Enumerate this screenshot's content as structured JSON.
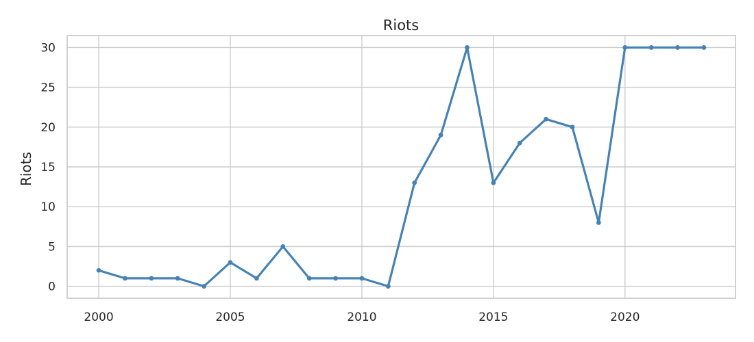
{
  "chart_data": {
    "type": "line",
    "title": "Riots",
    "xlabel": "",
    "ylabel": "Riots",
    "x": [
      2000,
      2001,
      2002,
      2003,
      2004,
      2005,
      2006,
      2007,
      2008,
      2009,
      2010,
      2011,
      2012,
      2013,
      2014,
      2015,
      2016,
      2017,
      2018,
      2019,
      2020,
      2021,
      2022,
      2023
    ],
    "series": [
      {
        "values": [
          2,
          1,
          1,
          1,
          0,
          3,
          1,
          5,
          1,
          1,
          1,
          0,
          13,
          19,
          30,
          13,
          18,
          21,
          20,
          8,
          30,
          30,
          30,
          30
        ],
        "color": "#4682b4"
      }
    ],
    "xticks": [
      "2000",
      "2005",
      "2010",
      "2015",
      "2020"
    ],
    "yticks": [
      "0",
      "5",
      "10",
      "15",
      "20",
      "25",
      "30"
    ],
    "xlim": [
      1998.8,
      2024.2
    ],
    "ylim": [
      -1.5,
      31.5
    ],
    "grid": true,
    "legend": "none"
  }
}
